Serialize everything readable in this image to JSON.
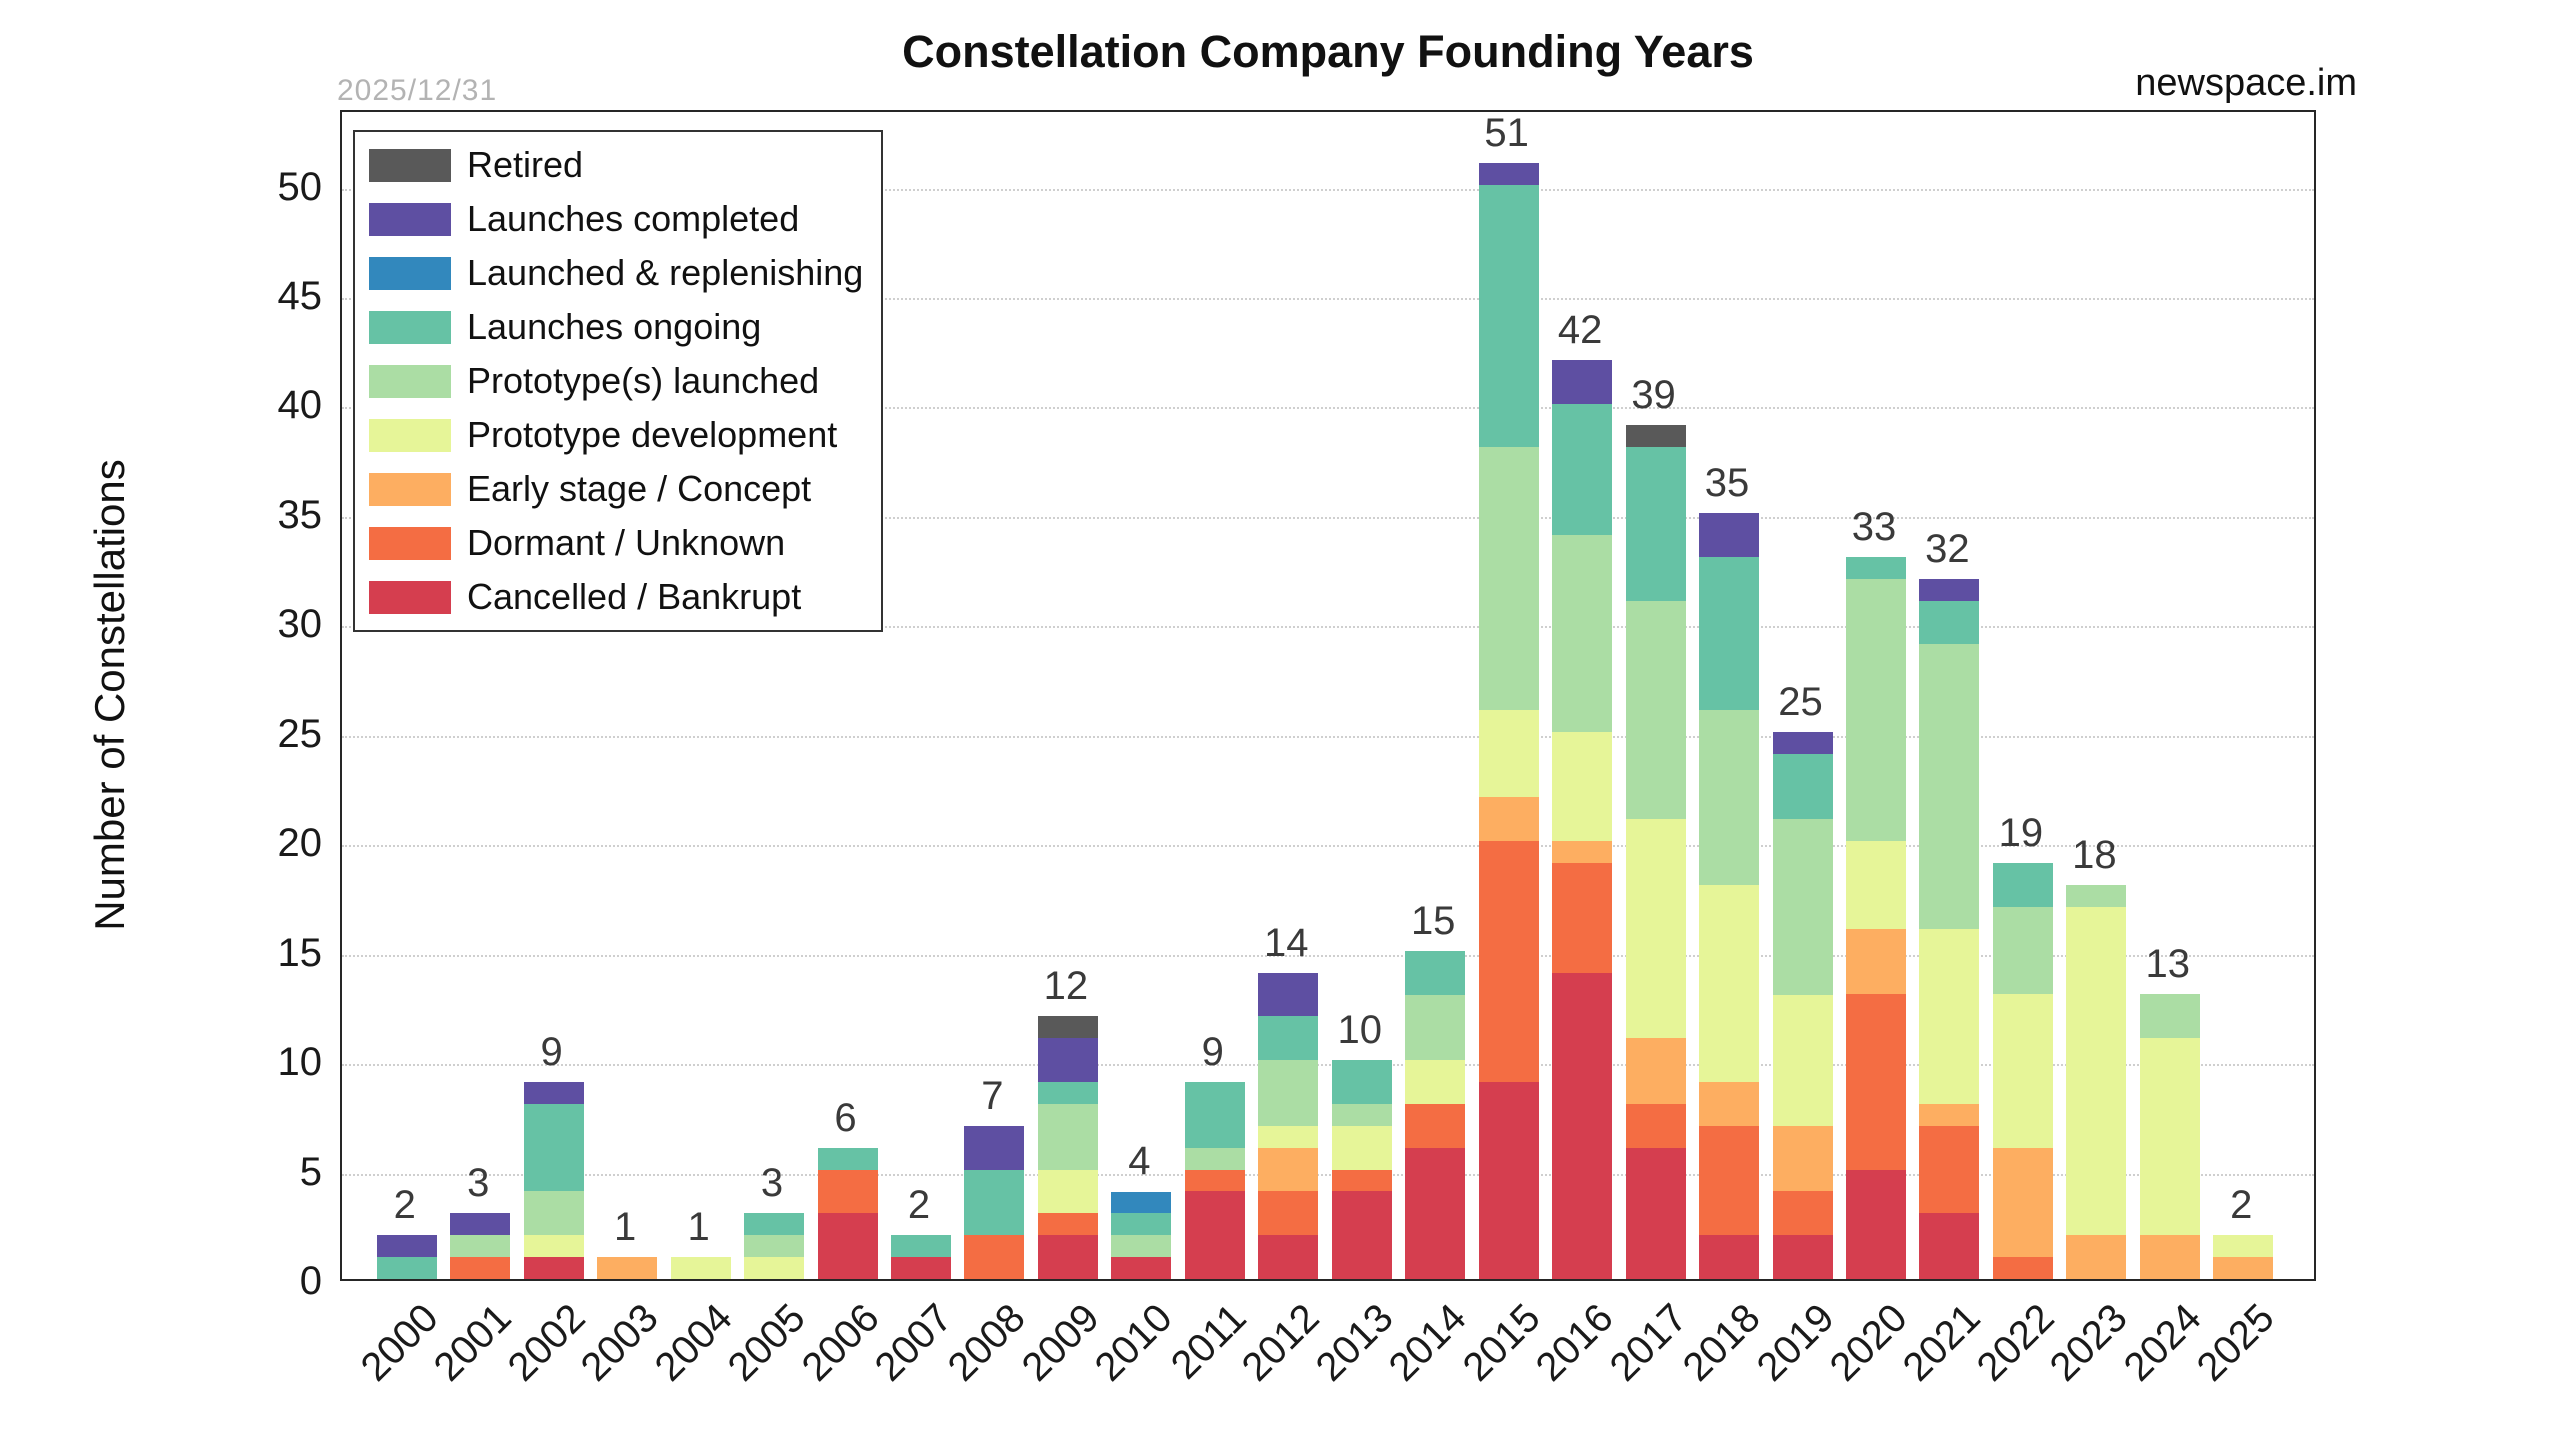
{
  "header": {
    "title": "Constellation Company Founding Years",
    "date_note": "2025/12/31",
    "brand": "newspace.im"
  },
  "axes": {
    "y_label": "Number of Constellations",
    "y_ticks": [
      0,
      5,
      10,
      15,
      20,
      25,
      30,
      35,
      40,
      45,
      50
    ],
    "x_ticks": [
      "2000",
      "2001",
      "2002",
      "2003",
      "2004",
      "2005",
      "2006",
      "2007",
      "2008",
      "2009",
      "2010",
      "2011",
      "2012",
      "2013",
      "2014",
      "2015",
      "2016",
      "2017",
      "2018",
      "2019",
      "2020",
      "2021",
      "2022",
      "2023",
      "2024",
      "2025"
    ]
  },
  "legend": [
    {
      "label": "Retired",
      "color": "#595959"
    },
    {
      "label": "Launches completed",
      "color": "#5E4FA2"
    },
    {
      "label": "Launched & replenishing",
      "color": "#3288BD"
    },
    {
      "label": "Launches ongoing",
      "color": "#66C2A5"
    },
    {
      "label": "Prototype(s) launched",
      "color": "#ABDDA4"
    },
    {
      "label": "Prototype development",
      "color": "#E6F598"
    },
    {
      "label": "Early stage / Concept",
      "color": "#FDAE61"
    },
    {
      "label": "Dormant / Unknown",
      "color": "#F46D43"
    },
    {
      "label": "Cancelled / Bankrupt",
      "color": "#D53E4F"
    }
  ],
  "chart_data": {
    "type": "bar",
    "stacked": true,
    "title": "Constellation Company Founding Years",
    "xlabel": "",
    "ylabel": "Number of Constellations",
    "ylim": [
      0,
      53.5
    ],
    "grid": "horizontal dotted lines every 5 units",
    "legend_position": "upper-left",
    "categories": [
      2000,
      2001,
      2002,
      2003,
      2004,
      2005,
      2006,
      2007,
      2008,
      2009,
      2010,
      2011,
      2012,
      2013,
      2014,
      2015,
      2016,
      2017,
      2018,
      2019,
      2020,
      2021,
      2022,
      2023,
      2024,
      2025
    ],
    "totals": [
      2,
      3,
      9,
      1,
      1,
      3,
      6,
      2,
      7,
      12,
      4,
      9,
      14,
      10,
      15,
      51,
      42,
      39,
      35,
      25,
      33,
      32,
      19,
      18,
      13,
      2
    ],
    "series": [
      {
        "name": "Cancelled / Bankrupt",
        "color": "#D53E4F",
        "values": [
          0,
          0,
          1,
          0,
          0,
          0,
          3,
          1,
          0,
          2,
          1,
          4,
          2,
          4,
          6,
          9,
          14,
          6,
          2,
          2,
          5,
          3,
          0,
          0,
          0,
          0
        ]
      },
      {
        "name": "Dormant / Unknown",
        "color": "#F46D43",
        "values": [
          0,
          1,
          0,
          0,
          0,
          0,
          2,
          0,
          2,
          1,
          0,
          1,
          2,
          1,
          2,
          11,
          5,
          2,
          5,
          2,
          8,
          4,
          1,
          0,
          0,
          0
        ]
      },
      {
        "name": "Early stage / Concept",
        "color": "#FDAE61",
        "values": [
          0,
          0,
          0,
          1,
          0,
          0,
          0,
          0,
          0,
          0,
          0,
          0,
          2,
          0,
          0,
          2,
          1,
          3,
          2,
          3,
          3,
          1,
          5,
          2,
          2,
          1
        ]
      },
      {
        "name": "Prototype development",
        "color": "#E6F598",
        "values": [
          0,
          0,
          1,
          0,
          1,
          1,
          0,
          0,
          0,
          2,
          0,
          0,
          1,
          2,
          2,
          4,
          5,
          10,
          9,
          6,
          4,
          8,
          7,
          15,
          9,
          1
        ]
      },
      {
        "name": "Prototype(s) launched",
        "color": "#ABDDA4",
        "values": [
          0,
          1,
          2,
          0,
          0,
          1,
          0,
          0,
          0,
          3,
          1,
          1,
          3,
          1,
          3,
          12,
          9,
          10,
          8,
          8,
          12,
          13,
          4,
          1,
          2,
          0
        ]
      },
      {
        "name": "Launches ongoing",
        "color": "#66C2A5",
        "values": [
          1,
          0,
          4,
          0,
          0,
          1,
          1,
          1,
          3,
          1,
          1,
          3,
          2,
          2,
          2,
          12,
          6,
          7,
          7,
          3,
          1,
          2,
          2,
          0,
          0,
          0
        ]
      },
      {
        "name": "Launched & replenishing",
        "color": "#3288BD",
        "values": [
          0,
          0,
          0,
          0,
          0,
          0,
          0,
          0,
          0,
          0,
          1,
          0,
          0,
          0,
          0,
          0,
          0,
          0,
          0,
          0,
          0,
          0,
          0,
          0,
          0,
          0
        ]
      },
      {
        "name": "Launches completed",
        "color": "#5E4FA2",
        "values": [
          1,
          1,
          1,
          0,
          0,
          0,
          0,
          0,
          2,
          2,
          0,
          0,
          2,
          0,
          0,
          1,
          2,
          0,
          2,
          1,
          0,
          1,
          0,
          0,
          0,
          0
        ]
      },
      {
        "name": "Retired",
        "color": "#595959",
        "values": [
          0,
          0,
          0,
          0,
          0,
          0,
          0,
          0,
          0,
          1,
          0,
          0,
          0,
          0,
          0,
          0,
          0,
          1,
          0,
          0,
          0,
          0,
          0,
          0,
          0,
          0
        ]
      }
    ]
  }
}
